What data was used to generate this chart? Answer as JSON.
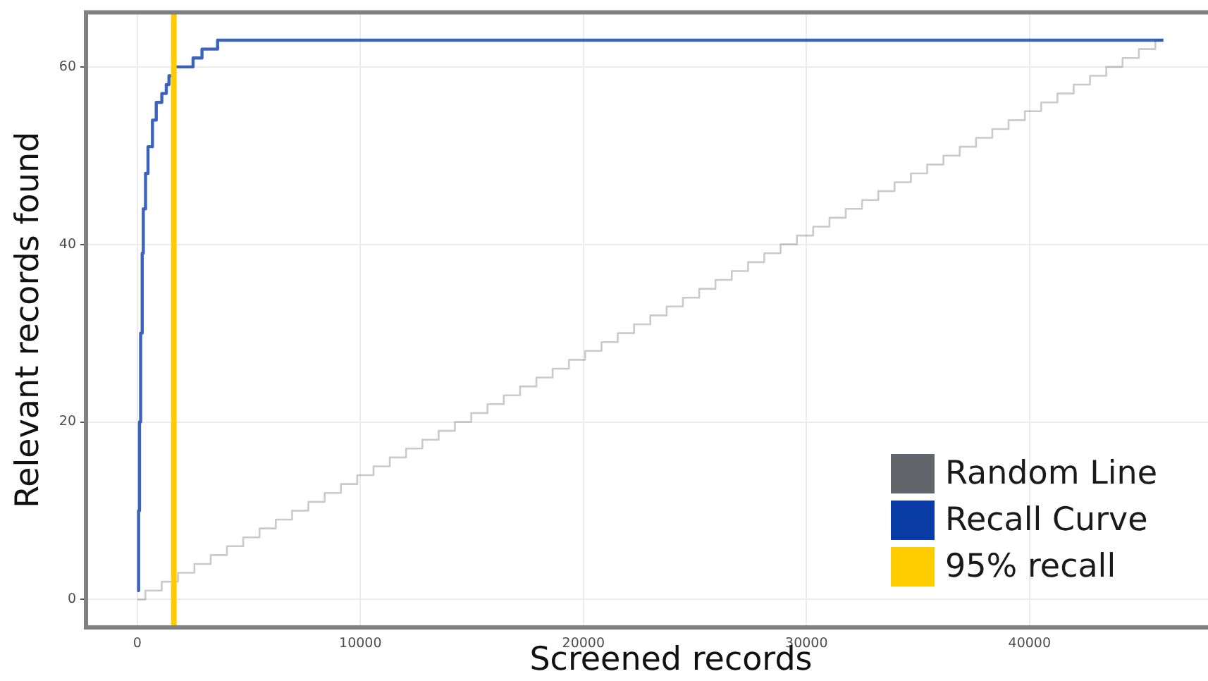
{
  "chart_data": {
    "type": "step",
    "xlabel": "Screened records",
    "ylabel": "Relevant records found",
    "xlim": [
      -2300,
      48000
    ],
    "ylim": [
      -3.15,
      66.15
    ],
    "xticks": [
      0,
      10000,
      20000,
      30000,
      40000
    ],
    "yticks": [
      0,
      20,
      40,
      60
    ],
    "grid": true,
    "legend": "bottom right",
    "marker": "none",
    "series": [
      {
        "name": "Random Line",
        "color": "#62666a",
        "x": [
          0,
          365,
          1095,
          1825,
          2560,
          3290,
          4020,
          4750,
          5480,
          6210,
          6940,
          7670,
          8400,
          9130,
          9860,
          10590,
          11320,
          12050,
          12780,
          13510,
          14240,
          14970,
          15700,
          16430,
          17160,
          17890,
          18620,
          19350,
          20080,
          20810,
          21540,
          22270,
          23000,
          23730,
          24460,
          25190,
          25920,
          26650,
          27380,
          28110,
          28840,
          29570,
          30300,
          31030,
          31760,
          32490,
          33220,
          33950,
          34680,
          35410,
          36140,
          36870,
          37600,
          38330,
          39060,
          39790,
          40520,
          41250,
          41980,
          42710,
          43440,
          44170,
          44900,
          45640,
          46000
        ],
        "values": [
          0,
          1,
          2,
          3,
          4,
          5,
          6,
          7,
          8,
          9,
          10,
          11,
          12,
          13,
          14,
          15,
          16,
          17,
          18,
          19,
          20,
          21,
          22,
          23,
          24,
          25,
          26,
          27,
          28,
          29,
          30,
          31,
          32,
          33,
          34,
          35,
          36,
          37,
          38,
          39,
          40,
          41,
          42,
          43,
          44,
          45,
          46,
          47,
          48,
          49,
          50,
          51,
          52,
          53,
          54,
          55,
          56,
          57,
          58,
          59,
          60,
          61,
          62,
          63,
          63
        ]
      },
      {
        "name": "Recall Curve",
        "color": "#0a3ca8",
        "x": [
          0,
          60,
          100,
          150,
          220,
          270,
          370,
          480,
          680,
          850,
          1100,
          1300,
          1420,
          1600,
          2500,
          2900,
          3600,
          46000
        ],
        "values": [
          1,
          10,
          20,
          30,
          39,
          44,
          48,
          51,
          54,
          56,
          57,
          58,
          59,
          60,
          61,
          62,
          63,
          63
        ]
      },
      {
        "name": "95% recall",
        "type": "line",
        "color": "#ffcc00",
        "x": [
          1640,
          1640
        ],
        "values": [
          -3,
          66
        ]
      }
    ]
  }
}
